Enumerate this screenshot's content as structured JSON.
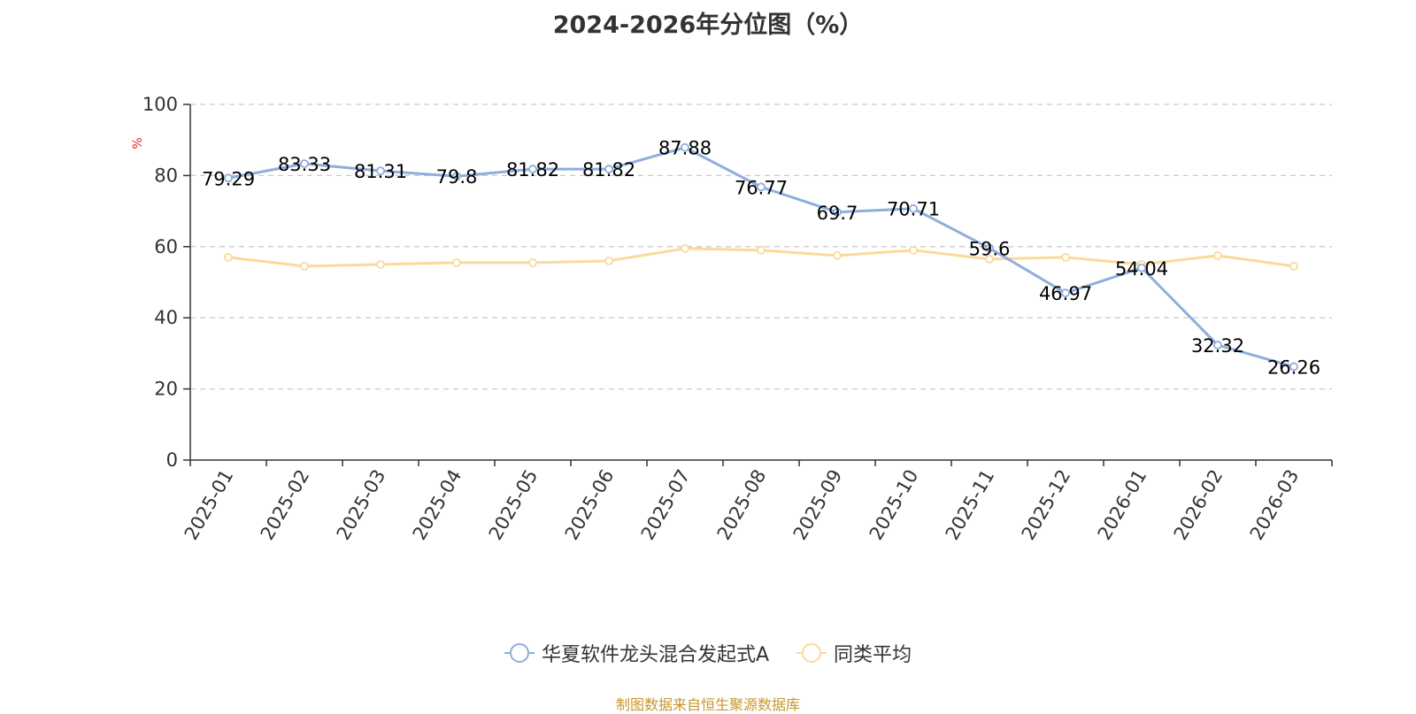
{
  "chart_data": {
    "type": "line",
    "title": "2024-2026年分位图（%）",
    "ylabel": "%",
    "ylim": [
      0,
      100
    ],
    "yticks": [
      0,
      20,
      40,
      60,
      80,
      100
    ],
    "grid": true,
    "legend_position": "bottom",
    "categories": [
      "2025-01",
      "2025-02",
      "2025-03",
      "2025-04",
      "2025-05",
      "2025-06",
      "2025-07",
      "2025-08",
      "2025-09",
      "2025-10",
      "2025-11",
      "2025-12",
      "2026-01",
      "2026-02",
      "2026-03"
    ],
    "series": [
      {
        "name": "华夏软件龙头混合发起式A",
        "color": "#8eaedc",
        "values": [
          79.29,
          83.33,
          81.31,
          79.8,
          81.82,
          81.82,
          87.88,
          76.77,
          69.7,
          70.71,
          59.6,
          46.97,
          54.04,
          32.32,
          26.26
        ],
        "labels": [
          "79.29",
          "83.33",
          "81.31",
          "79.8",
          "81.82",
          "81.82",
          "87.88",
          "76.77",
          "69.7",
          "70.71",
          "59.6",
          "46.97",
          "54.04",
          "32.32",
          "26.26"
        ]
      },
      {
        "name": "同类平均",
        "color": "#fbd99a",
        "values": [
          57.0,
          54.5,
          55.0,
          55.5,
          55.5,
          56.0,
          59.5,
          59.0,
          57.5,
          59.0,
          56.5,
          57.0,
          55.0,
          57.5,
          54.5
        ]
      }
    ]
  },
  "source": {
    "text": "制图数据来自恒生聚源数据库",
    "color": "#c8962a"
  },
  "axis_colors": {
    "ylabel": "#e8242a",
    "axis": "#333333",
    "grid": "#cccccc"
  }
}
